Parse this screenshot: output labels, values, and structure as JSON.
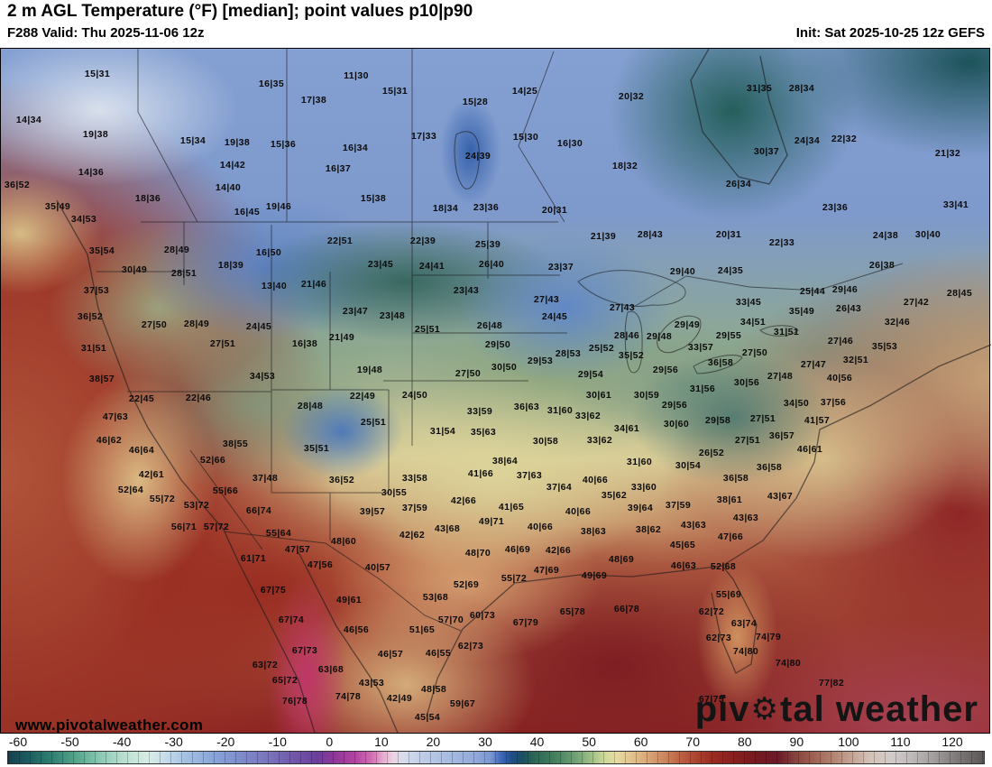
{
  "header": {
    "title": "2 m AGL Temperature (°F) [median]; point values p10|p90",
    "valid": "F288 Valid: Thu 2025-11-06 12z",
    "init": "Init: Sat 2025-10-25 12z GEFS"
  },
  "watermark": {
    "url": "www.pivotalweather.com",
    "brand_prefix": "piv",
    "gear_icon": "⚙",
    "brand_suffix": "tal weather"
  },
  "colorbar": {
    "unit": "°F",
    "min": -60,
    "max": 120,
    "ticks": [
      -60,
      -50,
      -40,
      -30,
      -20,
      -10,
      0,
      10,
      20,
      30,
      40,
      50,
      60,
      70,
      80,
      90,
      100,
      110,
      120
    ],
    "stops": [
      [
        -60,
        "#16404f"
      ],
      [
        -56,
        "#1e5f60"
      ],
      [
        -52,
        "#2f7f72"
      ],
      [
        -47,
        "#5aa88e"
      ],
      [
        -43,
        "#8cc9b4"
      ],
      [
        -38,
        "#bfe2d4"
      ],
      [
        -34,
        "#d8ede6"
      ],
      [
        -31,
        "#c6dcea"
      ],
      [
        -27,
        "#a3c0e2"
      ],
      [
        -22,
        "#88a4d8"
      ],
      [
        -17,
        "#7e8cca"
      ],
      [
        -12,
        "#7a74bc"
      ],
      [
        -7,
        "#7156a8"
      ],
      [
        -3,
        "#6b3f9c"
      ],
      [
        0,
        "#8c3898"
      ],
      [
        4,
        "#b344a2"
      ],
      [
        7,
        "#d06cb2"
      ],
      [
        9,
        "#e5a7cc"
      ],
      [
        11,
        "#ecd3e2"
      ],
      [
        13,
        "#d7dcec"
      ],
      [
        16,
        "#c2cfe8"
      ],
      [
        21,
        "#a9bce0"
      ],
      [
        26,
        "#93aada"
      ],
      [
        29,
        "#7b97d2"
      ],
      [
        31,
        "#3c68b8"
      ],
      [
        33,
        "#1f4d86"
      ],
      [
        35,
        "#1c4f5e"
      ],
      [
        37,
        "#2a6656"
      ],
      [
        41,
        "#46805e"
      ],
      [
        45,
        "#74a477"
      ],
      [
        48,
        "#a5c389"
      ],
      [
        50,
        "#cdd89a"
      ],
      [
        52,
        "#e6dca4"
      ],
      [
        55,
        "#e2c38e"
      ],
      [
        58,
        "#d8a678"
      ],
      [
        61,
        "#cc8660"
      ],
      [
        64,
        "#bc6244"
      ],
      [
        67,
        "#ab4330"
      ],
      [
        70,
        "#992b22"
      ],
      [
        74,
        "#88201e"
      ],
      [
        78,
        "#741a20"
      ],
      [
        82,
        "#6b1a28"
      ],
      [
        85,
        "#84403c"
      ],
      [
        88,
        "#9a5c50"
      ],
      [
        91,
        "#ac7866"
      ],
      [
        95,
        "#c29e8e"
      ],
      [
        99,
        "#d4c2b6"
      ],
      [
        103,
        "#d2cbc9"
      ],
      [
        107,
        "#bcb8b8"
      ],
      [
        111,
        "#a09c9c"
      ],
      [
        115,
        "#7e7a7a"
      ],
      [
        120,
        "#5a5656"
      ]
    ]
  },
  "map_points": [
    [
      107,
      81,
      "15|31"
    ],
    [
      300,
      92,
      "16|35"
    ],
    [
      347,
      110,
      "17|38"
    ],
    [
      31,
      132,
      "14|34"
    ],
    [
      105,
      148,
      "19|38"
    ],
    [
      213,
      155,
      "15|34"
    ],
    [
      262,
      157,
      "19|38"
    ],
    [
      313,
      159,
      "15|36"
    ],
    [
      257,
      182,
      "14|42"
    ],
    [
      100,
      190,
      "14|36"
    ],
    [
      18,
      204,
      "36|52"
    ],
    [
      252,
      207,
      "14|40"
    ],
    [
      163,
      219,
      "18|36"
    ],
    [
      63,
      228,
      "35|49"
    ],
    [
      308,
      228,
      "19|46"
    ],
    [
      273,
      234,
      "16|45"
    ],
    [
      92,
      242,
      "34|53"
    ],
    [
      394,
      83,
      "11|30"
    ],
    [
      437,
      100,
      "15|31"
    ],
    [
      581,
      100,
      "14|25"
    ],
    [
      699,
      106,
      "20|32"
    ],
    [
      526,
      112,
      "15|28"
    ],
    [
      469,
      150,
      "17|33"
    ],
    [
      582,
      151,
      "15|30"
    ],
    [
      631,
      158,
      "16|30"
    ],
    [
      393,
      163,
      "16|34"
    ],
    [
      529,
      172,
      "24|39"
    ],
    [
      374,
      186,
      "16|37"
    ],
    [
      692,
      183,
      "18|32"
    ],
    [
      413,
      219,
      "15|38"
    ],
    [
      493,
      230,
      "18|34"
    ],
    [
      538,
      229,
      "23|36"
    ],
    [
      614,
      232,
      "20|31"
    ],
    [
      841,
      97,
      "31|35"
    ],
    [
      888,
      97,
      "28|34"
    ],
    [
      894,
      155,
      "24|34"
    ],
    [
      935,
      153,
      "22|32"
    ],
    [
      1050,
      169,
      "21|32"
    ],
    [
      849,
      167,
      "30|37"
    ],
    [
      818,
      203,
      "26|34"
    ],
    [
      925,
      229,
      "23|36"
    ],
    [
      1059,
      226,
      "33|41"
    ],
    [
      112,
      277,
      "35|54"
    ],
    [
      195,
      276,
      "28|49"
    ],
    [
      297,
      279,
      "16|50"
    ],
    [
      255,
      293,
      "18|39"
    ],
    [
      148,
      298,
      "30|49"
    ],
    [
      203,
      302,
      "28|51"
    ],
    [
      303,
      316,
      "13|40"
    ],
    [
      347,
      314,
      "21|46"
    ],
    [
      106,
      321,
      "37|53"
    ],
    [
      99,
      350,
      "36|52"
    ],
    [
      170,
      359,
      "27|50"
    ],
    [
      217,
      358,
      "28|49"
    ],
    [
      286,
      361,
      "24|45"
    ],
    [
      246,
      380,
      "27|51"
    ],
    [
      337,
      380,
      "16|38"
    ],
    [
      103,
      385,
      "31|51"
    ],
    [
      112,
      419,
      "38|57"
    ],
    [
      290,
      416,
      "34|53"
    ],
    [
      376,
      266,
      "22|51"
    ],
    [
      468,
      266,
      "22|39"
    ],
    [
      540,
      270,
      "25|39"
    ],
    [
      668,
      261,
      "21|39"
    ],
    [
      720,
      259,
      "28|43"
    ],
    [
      421,
      292,
      "23|45"
    ],
    [
      478,
      294,
      "24|41"
    ],
    [
      544,
      292,
      "26|40"
    ],
    [
      621,
      295,
      "23|37"
    ],
    [
      516,
      321,
      "23|43"
    ],
    [
      605,
      331,
      "27|43"
    ],
    [
      689,
      340,
      "27|43"
    ],
    [
      614,
      350,
      "24|45"
    ],
    [
      393,
      344,
      "23|47"
    ],
    [
      434,
      349,
      "23|48"
    ],
    [
      473,
      364,
      "25|51"
    ],
    [
      542,
      360,
      "26|48"
    ],
    [
      378,
      373,
      "21|49"
    ],
    [
      694,
      371,
      "28|46"
    ],
    [
      730,
      372,
      "29|48"
    ],
    [
      551,
      381,
      "29|50"
    ],
    [
      666,
      385,
      "25|52"
    ],
    [
      699,
      393,
      "35|52"
    ],
    [
      629,
      391,
      "28|53"
    ],
    [
      598,
      399,
      "29|53"
    ],
    [
      558,
      406,
      "30|50"
    ],
    [
      518,
      413,
      "27|50"
    ],
    [
      409,
      409,
      "19|48"
    ],
    [
      654,
      414,
      "29|54"
    ],
    [
      807,
      259,
      "20|31"
    ],
    [
      866,
      268,
      "22|33"
    ],
    [
      981,
      260,
      "24|38"
    ],
    [
      1028,
      259,
      "30|40"
    ],
    [
      756,
      300,
      "29|40"
    ],
    [
      809,
      299,
      "24|35"
    ],
    [
      977,
      293,
      "26|38"
    ],
    [
      900,
      322,
      "25|44"
    ],
    [
      936,
      320,
      "29|46"
    ],
    [
      940,
      341,
      "26|43"
    ],
    [
      1015,
      334,
      "27|42"
    ],
    [
      1063,
      324,
      "28|45"
    ],
    [
      829,
      334,
      "33|45"
    ],
    [
      888,
      344,
      "35|49"
    ],
    [
      834,
      356,
      "34|51"
    ],
    [
      994,
      356,
      "32|46"
    ],
    [
      761,
      359,
      "29|49"
    ],
    [
      871,
      367,
      "31|51"
    ],
    [
      807,
      371,
      "29|55"
    ],
    [
      776,
      384,
      "33|57"
    ],
    [
      931,
      377,
      "27|46"
    ],
    [
      980,
      383,
      "35|53"
    ],
    [
      836,
      390,
      "27|50"
    ],
    [
      948,
      398,
      "32|51"
    ],
    [
      798,
      401,
      "36|58"
    ],
    [
      901,
      403,
      "27|47"
    ],
    [
      737,
      409,
      "29|56"
    ],
    [
      930,
      418,
      "40|56"
    ],
    [
      864,
      416,
      "27|48"
    ],
    [
      827,
      423,
      "30|56"
    ],
    [
      778,
      430,
      "31|56"
    ],
    [
      156,
      441,
      "22|45"
    ],
    [
      219,
      440,
      "22|46"
    ],
    [
      343,
      449,
      "28|48"
    ],
    [
      127,
      461,
      "47|63"
    ],
    [
      120,
      487,
      "46|62"
    ],
    [
      156,
      498,
      "46|64"
    ],
    [
      260,
      491,
      "38|55"
    ],
    [
      350,
      496,
      "35|51"
    ],
    [
      235,
      509,
      "52|66"
    ],
    [
      167,
      525,
      "42|61"
    ],
    [
      293,
      529,
      "37|48"
    ],
    [
      144,
      542,
      "52|64"
    ],
    [
      249,
      543,
      "55|66"
    ],
    [
      179,
      552,
      "55|72"
    ],
    [
      217,
      559,
      "53|72"
    ],
    [
      286,
      565,
      "66|74"
    ],
    [
      203,
      583,
      "56|71"
    ],
    [
      239,
      583,
      "57|72"
    ],
    [
      308,
      590,
      "55|64"
    ],
    [
      329,
      608,
      "47|57"
    ],
    [
      280,
      618,
      "61|71"
    ],
    [
      354,
      625,
      "47|56"
    ],
    [
      401,
      438,
      "22|49"
    ],
    [
      459,
      437,
      "24|50"
    ],
    [
      663,
      437,
      "30|61"
    ],
    [
      716,
      437,
      "30|59"
    ],
    [
      531,
      455,
      "33|59"
    ],
    [
      583,
      450,
      "36|63"
    ],
    [
      620,
      454,
      "31|60"
    ],
    [
      651,
      460,
      "33|62"
    ],
    [
      413,
      467,
      "25|51"
    ],
    [
      490,
      477,
      "31|54"
    ],
    [
      535,
      478,
      "35|63"
    ],
    [
      694,
      474,
      "34|61"
    ],
    [
      604,
      488,
      "30|58"
    ],
    [
      664,
      487,
      "33|62"
    ],
    [
      559,
      510,
      "38|64"
    ],
    [
      708,
      511,
      "31|60"
    ],
    [
      532,
      524,
      "41|66"
    ],
    [
      586,
      526,
      "37|63"
    ],
    [
      459,
      529,
      "33|58"
    ],
    [
      378,
      531,
      "36|52"
    ],
    [
      659,
      531,
      "40|66"
    ],
    [
      619,
      539,
      "37|64"
    ],
    [
      713,
      539,
      "33|60"
    ],
    [
      436,
      545,
      "30|55"
    ],
    [
      680,
      548,
      "35|62"
    ],
    [
      459,
      562,
      "37|59"
    ],
    [
      412,
      566,
      "39|57"
    ],
    [
      513,
      554,
      "42|66"
    ],
    [
      566,
      561,
      "41|65"
    ],
    [
      709,
      562,
      "39|64"
    ],
    [
      640,
      566,
      "40|66"
    ],
    [
      544,
      577,
      "49|71"
    ],
    [
      495,
      585,
      "43|68"
    ],
    [
      598,
      583,
      "40|66"
    ],
    [
      657,
      588,
      "38|63"
    ],
    [
      456,
      592,
      "42|62"
    ],
    [
      380,
      599,
      "48|60"
    ],
    [
      529,
      612,
      "48|70"
    ],
    [
      573,
      608,
      "46|69"
    ],
    [
      618,
      609,
      "42|66"
    ],
    [
      688,
      619,
      "48|69"
    ],
    [
      418,
      628,
      "40|57"
    ],
    [
      747,
      448,
      "29|56"
    ],
    [
      882,
      446,
      "34|50"
    ],
    [
      923,
      445,
      "37|56"
    ],
    [
      905,
      465,
      "41|57"
    ],
    [
      795,
      465,
      "29|58"
    ],
    [
      845,
      463,
      "27|51"
    ],
    [
      749,
      469,
      "30|60"
    ],
    [
      866,
      482,
      "36|57"
    ],
    [
      828,
      487,
      "27|51"
    ],
    [
      897,
      497,
      "46|61"
    ],
    [
      788,
      501,
      "26|52"
    ],
    [
      762,
      515,
      "30|54"
    ],
    [
      852,
      517,
      "36|58"
    ],
    [
      815,
      529,
      "36|58"
    ],
    [
      864,
      549,
      "43|67"
    ],
    [
      808,
      553,
      "38|61"
    ],
    [
      751,
      559,
      "37|59"
    ],
    [
      826,
      573,
      "43|63"
    ],
    [
      768,
      581,
      "43|63"
    ],
    [
      718,
      586,
      "38|62"
    ],
    [
      809,
      594,
      "47|66"
    ],
    [
      756,
      603,
      "45|65"
    ],
    [
      302,
      653,
      "67|75"
    ],
    [
      322,
      686,
      "67|74"
    ],
    [
      337,
      720,
      "67|73"
    ],
    [
      293,
      736,
      "63|72"
    ],
    [
      315,
      753,
      "65|72"
    ],
    [
      326,
      776,
      "76|78"
    ],
    [
      605,
      631,
      "47|69"
    ],
    [
      569,
      640,
      "55|72"
    ],
    [
      658,
      637,
      "49|69"
    ],
    [
      516,
      647,
      "52|69"
    ],
    [
      482,
      661,
      "53|68"
    ],
    [
      386,
      664,
      "49|61"
    ],
    [
      634,
      677,
      "65|78"
    ],
    [
      694,
      674,
      "66|78"
    ],
    [
      534,
      681,
      "60|73"
    ],
    [
      499,
      686,
      "57|70"
    ],
    [
      582,
      689,
      "67|79"
    ],
    [
      394,
      697,
      "46|56"
    ],
    [
      467,
      697,
      "51|65"
    ],
    [
      521,
      715,
      "62|73"
    ],
    [
      432,
      724,
      "46|57"
    ],
    [
      485,
      723,
      "46|55"
    ],
    [
      366,
      741,
      "63|68"
    ],
    [
      411,
      756,
      "43|53"
    ],
    [
      480,
      763,
      "48|58"
    ],
    [
      385,
      771,
      "74|78"
    ],
    [
      442,
      773,
      "42|49"
    ],
    [
      512,
      779,
      "59|67"
    ],
    [
      473,
      794,
      "45|54"
    ],
    [
      757,
      626,
      "46|63"
    ],
    [
      801,
      627,
      "52|68"
    ],
    [
      807,
      658,
      "55|69"
    ],
    [
      788,
      677,
      "62|72"
    ],
    [
      824,
      690,
      "63|74"
    ],
    [
      796,
      706,
      "62|73"
    ],
    [
      851,
      705,
      "74|79"
    ],
    [
      826,
      721,
      "74|80"
    ],
    [
      873,
      734,
      "74|80"
    ],
    [
      921,
      756,
      "77|82"
    ],
    [
      788,
      774,
      "67|75"
    ]
  ]
}
